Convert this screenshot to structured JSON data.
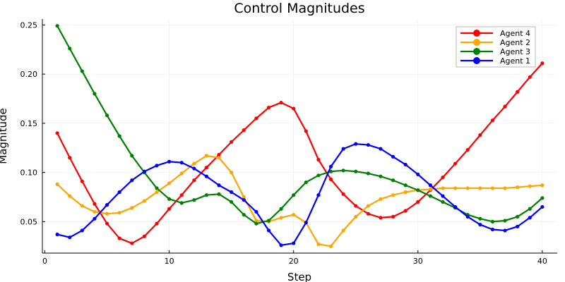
{
  "chart_data": {
    "type": "line",
    "title": "Control Magnitudes",
    "xlabel": "Step",
    "ylabel": "Magnitude",
    "xlim": [
      -0.2,
      41.2
    ],
    "ylim": [
      0.018,
      0.256
    ],
    "xticks": [
      0,
      10,
      20,
      30,
      40
    ],
    "xtick_labels": [
      "0",
      "10",
      "20",
      "30",
      "40"
    ],
    "yticks": [
      0.05,
      0.1,
      0.15,
      0.2,
      0.25
    ],
    "ytick_labels": [
      "0.05",
      "0.10",
      "0.15",
      "0.20",
      "0.25"
    ],
    "grid": true,
    "legend_position": "top-right",
    "x": [
      1,
      2,
      3,
      4,
      5,
      6,
      7,
      8,
      9,
      10,
      11,
      12,
      13,
      14,
      15,
      16,
      17,
      18,
      19,
      20,
      21,
      22,
      23,
      24,
      25,
      26,
      27,
      28,
      29,
      30,
      31,
      32,
      33,
      34,
      35,
      36,
      37,
      38,
      39,
      40
    ],
    "series": [
      {
        "name": "Agent 4",
        "color": "#ff0000",
        "values": [
          0.14,
          0.115,
          0.091,
          0.068,
          0.048,
          0.033,
          0.028,
          0.035,
          0.048,
          0.063,
          0.077,
          0.092,
          0.105,
          0.118,
          0.131,
          0.143,
          0.155,
          0.166,
          0.171,
          0.165,
          0.142,
          0.113,
          0.093,
          0.078,
          0.066,
          0.058,
          0.054,
          0.055,
          0.061,
          0.07,
          0.082,
          0.095,
          0.109,
          0.123,
          0.138,
          0.153,
          0.167,
          0.182,
          0.197,
          0.211
        ]
      },
      {
        "name": "Agent 2",
        "color": "#ffa500",
        "values": [
          0.088,
          0.076,
          0.066,
          0.06,
          0.058,
          0.059,
          0.064,
          0.071,
          0.08,
          0.089,
          0.099,
          0.109,
          0.117,
          0.115,
          0.1,
          0.075,
          0.051,
          0.05,
          0.054,
          0.057,
          0.049,
          0.027,
          0.025,
          0.041,
          0.055,
          0.066,
          0.073,
          0.077,
          0.08,
          0.082,
          0.083,
          0.084,
          0.084,
          0.084,
          0.084,
          0.084,
          0.084,
          0.085,
          0.086,
          0.087
        ]
      },
      {
        "name": "Agent 3",
        "color": "#008000",
        "values": [
          0.249,
          0.226,
          0.203,
          0.18,
          0.158,
          0.137,
          0.117,
          0.1,
          0.084,
          0.073,
          0.069,
          0.072,
          0.077,
          0.078,
          0.07,
          0.057,
          0.048,
          0.051,
          0.063,
          0.077,
          0.09,
          0.097,
          0.101,
          0.102,
          0.101,
          0.099,
          0.096,
          0.092,
          0.087,
          0.082,
          0.076,
          0.07,
          0.064,
          0.057,
          0.053,
          0.05,
          0.051,
          0.055,
          0.063,
          0.074
        ]
      },
      {
        "name": "Agent 1",
        "color": "#0000ff",
        "values": [
          0.037,
          0.034,
          0.041,
          0.053,
          0.067,
          0.08,
          0.092,
          0.101,
          0.107,
          0.111,
          0.11,
          0.104,
          0.096,
          0.087,
          0.08,
          0.072,
          0.06,
          0.041,
          0.026,
          0.028,
          0.049,
          0.077,
          0.106,
          0.124,
          0.129,
          0.128,
          0.124,
          0.116,
          0.108,
          0.098,
          0.087,
          0.076,
          0.065,
          0.055,
          0.047,
          0.042,
          0.041,
          0.045,
          0.054,
          0.065
        ]
      }
    ]
  }
}
